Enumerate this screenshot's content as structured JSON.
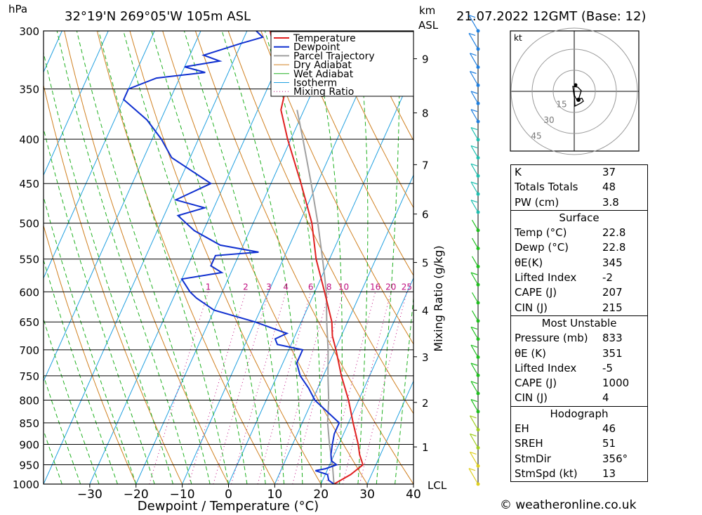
{
  "header": {
    "pressure_unit": "hPa",
    "location": "32°19'N  269°05'W  105m  ASL",
    "km_unit_line1": "km",
    "km_unit_line2": "ASL",
    "datetime": "21.07.2022  12GMT  (Base: 12)"
  },
  "chart_data": {
    "type": "skew-t",
    "xlabel": "Dewpoint / Temperature (°C)",
    "right_axis_label": "Mixing Ratio (g/kg)",
    "temperature_ticks": [
      -30,
      -20,
      -10,
      0,
      10,
      20,
      30,
      40
    ],
    "pressure_ticks": [
      300,
      350,
      400,
      450,
      500,
      550,
      600,
      650,
      700,
      750,
      800,
      850,
      900,
      950,
      1000
    ],
    "pressure_range": [
      1000,
      300
    ],
    "km_ticks": [
      {
        "label": "1",
        "p": 906
      },
      {
        "label": "2",
        "p": 805
      },
      {
        "label": "3",
        "p": 713
      },
      {
        "label": "4",
        "p": 630
      },
      {
        "label": "5",
        "p": 555
      },
      {
        "label": "6",
        "p": 488
      },
      {
        "label": "7",
        "p": 428
      },
      {
        "label": "8",
        "p": 373
      },
      {
        "label": "9",
        "p": 323
      }
    ],
    "lcl_label": "LCL",
    "mixing_ratio_labels": [
      "1",
      "2",
      "3",
      "4",
      "6",
      "8",
      "10",
      "16",
      "20",
      "25"
    ],
    "mixing_ratio_values": [
      1,
      2,
      3,
      4,
      6,
      8,
      10,
      16,
      20,
      25
    ],
    "legend": [
      "Temperature",
      "Dewpoint",
      "Parcel Trajectory",
      "Dry Adiabat",
      "Wet Adiabat",
      "Isotherm",
      "Mixing Ratio"
    ],
    "temperature_profile": [
      [
        1000,
        22.8
      ],
      [
        975,
        25.5
      ],
      [
        950,
        27.2
      ],
      [
        925,
        25.5
      ],
      [
        900,
        24.2
      ],
      [
        850,
        21.0
      ],
      [
        800,
        17.8
      ],
      [
        750,
        13.9
      ],
      [
        700,
        10.2
      ],
      [
        675,
        8.1
      ],
      [
        650,
        6.6
      ],
      [
        600,
        2.1
      ],
      [
        550,
        -2.9
      ],
      [
        500,
        -7.3
      ],
      [
        450,
        -13.5
      ],
      [
        400,
        -20.7
      ],
      [
        370,
        -25.0
      ],
      [
        350,
        -26.0
      ],
      [
        320,
        -31.5
      ],
      [
        300,
        -35.0
      ]
    ],
    "dewpoint_profile": [
      [
        1000,
        22.8
      ],
      [
        990,
        21.3
      ],
      [
        975,
        20.5
      ],
      [
        965,
        17.5
      ],
      [
        960,
        19.5
      ],
      [
        950,
        21.5
      ],
      [
        940,
        20.0
      ],
      [
        925,
        19.3
      ],
      [
        900,
        18.6
      ],
      [
        875,
        18.0
      ],
      [
        850,
        18.0
      ],
      [
        800,
        10.5
      ],
      [
        775,
        8.0
      ],
      [
        750,
        5.0
      ],
      [
        725,
        3.0
      ],
      [
        700,
        3.0
      ],
      [
        690,
        -3.0
      ],
      [
        680,
        -4.0
      ],
      [
        670,
        -2.0
      ],
      [
        660,
        -6.0
      ],
      [
        650,
        -10.0
      ],
      [
        630,
        -20.0
      ],
      [
        610,
        -25.0
      ],
      [
        600,
        -27.0
      ],
      [
        580,
        -30.0
      ],
      [
        570,
        -22.0
      ],
      [
        560,
        -25.0
      ],
      [
        545,
        -25.0
      ],
      [
        540,
        -16.0
      ],
      [
        530,
        -25.0
      ],
      [
        510,
        -32.0
      ],
      [
        490,
        -37.0
      ],
      [
        480,
        -32.0
      ],
      [
        470,
        -39.0
      ],
      [
        450,
        -33.0
      ],
      [
        420,
        -44.0
      ],
      [
        400,
        -48.0
      ],
      [
        380,
        -53.0
      ],
      [
        360,
        -60.0
      ],
      [
        350,
        -60.0
      ],
      [
        340,
        -55.0
      ],
      [
        335,
        -45.0
      ],
      [
        330,
        -50.0
      ],
      [
        325,
        -43.0
      ],
      [
        320,
        -47.0
      ],
      [
        310,
        -40.0
      ],
      [
        305,
        -36.0
      ],
      [
        300,
        -38.0
      ]
    ],
    "parcel_profile": [
      [
        1000,
        22.8
      ],
      [
        950,
        20.6
      ],
      [
        900,
        18.0
      ],
      [
        850,
        15.5
      ],
      [
        800,
        13.5
      ],
      [
        750,
        11.0
      ],
      [
        700,
        8.5
      ],
      [
        650,
        5.5
      ],
      [
        600,
        2.5
      ],
      [
        550,
        -1.5
      ],
      [
        500,
        -6.0
      ],
      [
        450,
        -11.3
      ],
      [
        400,
        -17.4
      ],
      [
        370,
        -21.5
      ]
    ],
    "hodograph": {
      "unit_label": "kt",
      "ring_labels": [
        "15",
        "30",
        "45"
      ],
      "points": [
        [
          0,
          0
        ],
        [
          0.2,
          -3.0
        ],
        [
          1.5,
          -5.5
        ],
        [
          5.5,
          -5.0
        ],
        [
          6.5,
          -7.0
        ],
        [
          4.5,
          -8.5
        ],
        [
          0.5,
          -10.5
        ],
        [
          0.2,
          -5.5
        ],
        [
          -1.0,
          3.5
        ],
        [
          2.5,
          3.0
        ],
        [
          5.0,
          0.5
        ],
        [
          3.0,
          -6.0
        ]
      ]
    },
    "wind_column_speeds": [
      20,
      15,
      15,
      15,
      10,
      10,
      10,
      10,
      10,
      5,
      5,
      10,
      5,
      5,
      5,
      10,
      10,
      10,
      10,
      10,
      10,
      10,
      15,
      15,
      20,
      20
    ]
  },
  "indices": {
    "rows": [
      {
        "label": "K",
        "value": "37"
      },
      {
        "label": "Totals Totals",
        "value": "48"
      },
      {
        "label": "PW (cm)",
        "value": "3.8"
      }
    ],
    "surface": {
      "title": "Surface",
      "rows": [
        {
          "label": "Temp (°C)",
          "value": "22.8"
        },
        {
          "label": "Dewp (°C)",
          "value": "22.8"
        },
        {
          "label": "θE(K)",
          "value": "345"
        },
        {
          "label": "Lifted Index",
          "value": "-2"
        },
        {
          "label": "CAPE (J)",
          "value": "207"
        },
        {
          "label": "CIN (J)",
          "value": "215"
        }
      ]
    },
    "most_unstable": {
      "title": "Most Unstable",
      "rows": [
        {
          "label": "Pressure (mb)",
          "value": "833"
        },
        {
          "label": "θE (K)",
          "value": "351"
        },
        {
          "label": "Lifted Index",
          "value": "-5"
        },
        {
          "label": "CAPE (J)",
          "value": "1000"
        },
        {
          "label": "CIN (J)",
          "value": "4"
        }
      ]
    },
    "hodograph": {
      "title": "Hodograph",
      "rows": [
        {
          "label": "EH",
          "value": "46"
        },
        {
          "label": "SREH",
          "value": "51"
        },
        {
          "label": "StmDir",
          "value": "356°"
        },
        {
          "label": "StmSpd (kt)",
          "value": "13"
        }
      ]
    }
  },
  "footer": {
    "copyright": "© weatheronline.co.uk"
  },
  "colors": {
    "temperature": "#e02020",
    "dewpoint": "#1030d0",
    "parcel": "#a0a0a0",
    "dry_adiabat": "#d08020",
    "wet_adiabat": "#20b020",
    "isotherm": "#20a0e0",
    "mixing_ratio": "#c01080"
  }
}
